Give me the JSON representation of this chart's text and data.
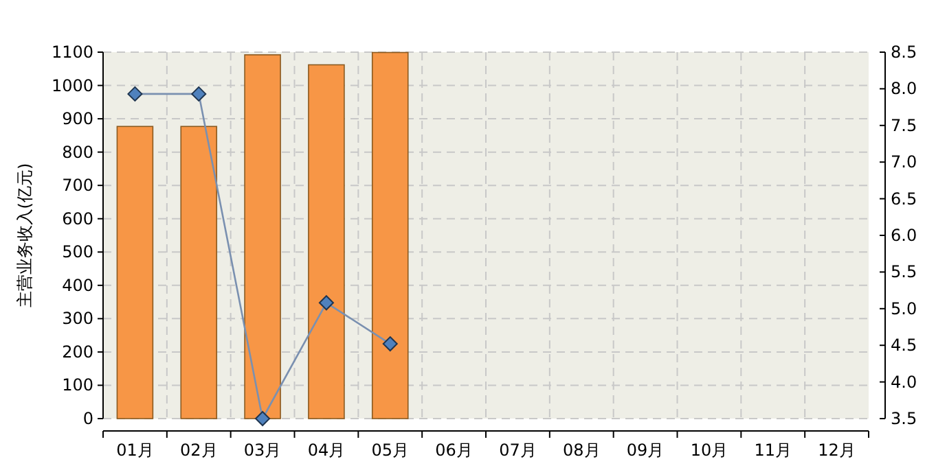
{
  "chart_data": {
    "type": "bar",
    "ylabel": "主营业务收入(亿元)",
    "categories": [
      "01月",
      "02月",
      "03月",
      "04月",
      "05月",
      "06月",
      "07月",
      "08月",
      "09月",
      "10月",
      "11月",
      "12月"
    ],
    "series": [
      {
        "color": "#f79646",
        "values": [
          877,
          877,
          1092,
          1062,
          1099,
          null,
          null,
          null,
          null,
          null,
          null,
          null
        ]
      },
      {
        "type": "line",
        "axis": "y2",
        "color": "#4f81bd",
        "marker": "diamond",
        "values": [
          7.93,
          7.93,
          3.5,
          5.08,
          4.52,
          null,
          null,
          null,
          null,
          null,
          null,
          null
        ]
      }
    ],
    "ylim": [
      0,
      1100
    ],
    "yticks": [
      0,
      100,
      200,
      300,
      400,
      500,
      600,
      700,
      800,
      900,
      1000,
      1100
    ],
    "y2lim": [
      3.5,
      8.5
    ],
    "y2ticks": [
      {
        "value": 3.5,
        "label": "3.5"
      },
      {
        "value": 4,
        "label": "4.0"
      },
      {
        "value": 4.5,
        "label": "4.5"
      },
      {
        "value": 5,
        "label": "5.0"
      },
      {
        "value": 5.5,
        "label": "5.5"
      },
      {
        "value": 6,
        "label": "6.0"
      },
      {
        "value": 6.5,
        "label": "6.5"
      },
      {
        "value": 7,
        "label": "7.0"
      },
      {
        "value": 7.5,
        "label": "7.5"
      },
      {
        "value": 8,
        "label": "8.0"
      },
      {
        "value": 8.5,
        "label": "8.5"
      }
    ],
    "grid": true
  }
}
